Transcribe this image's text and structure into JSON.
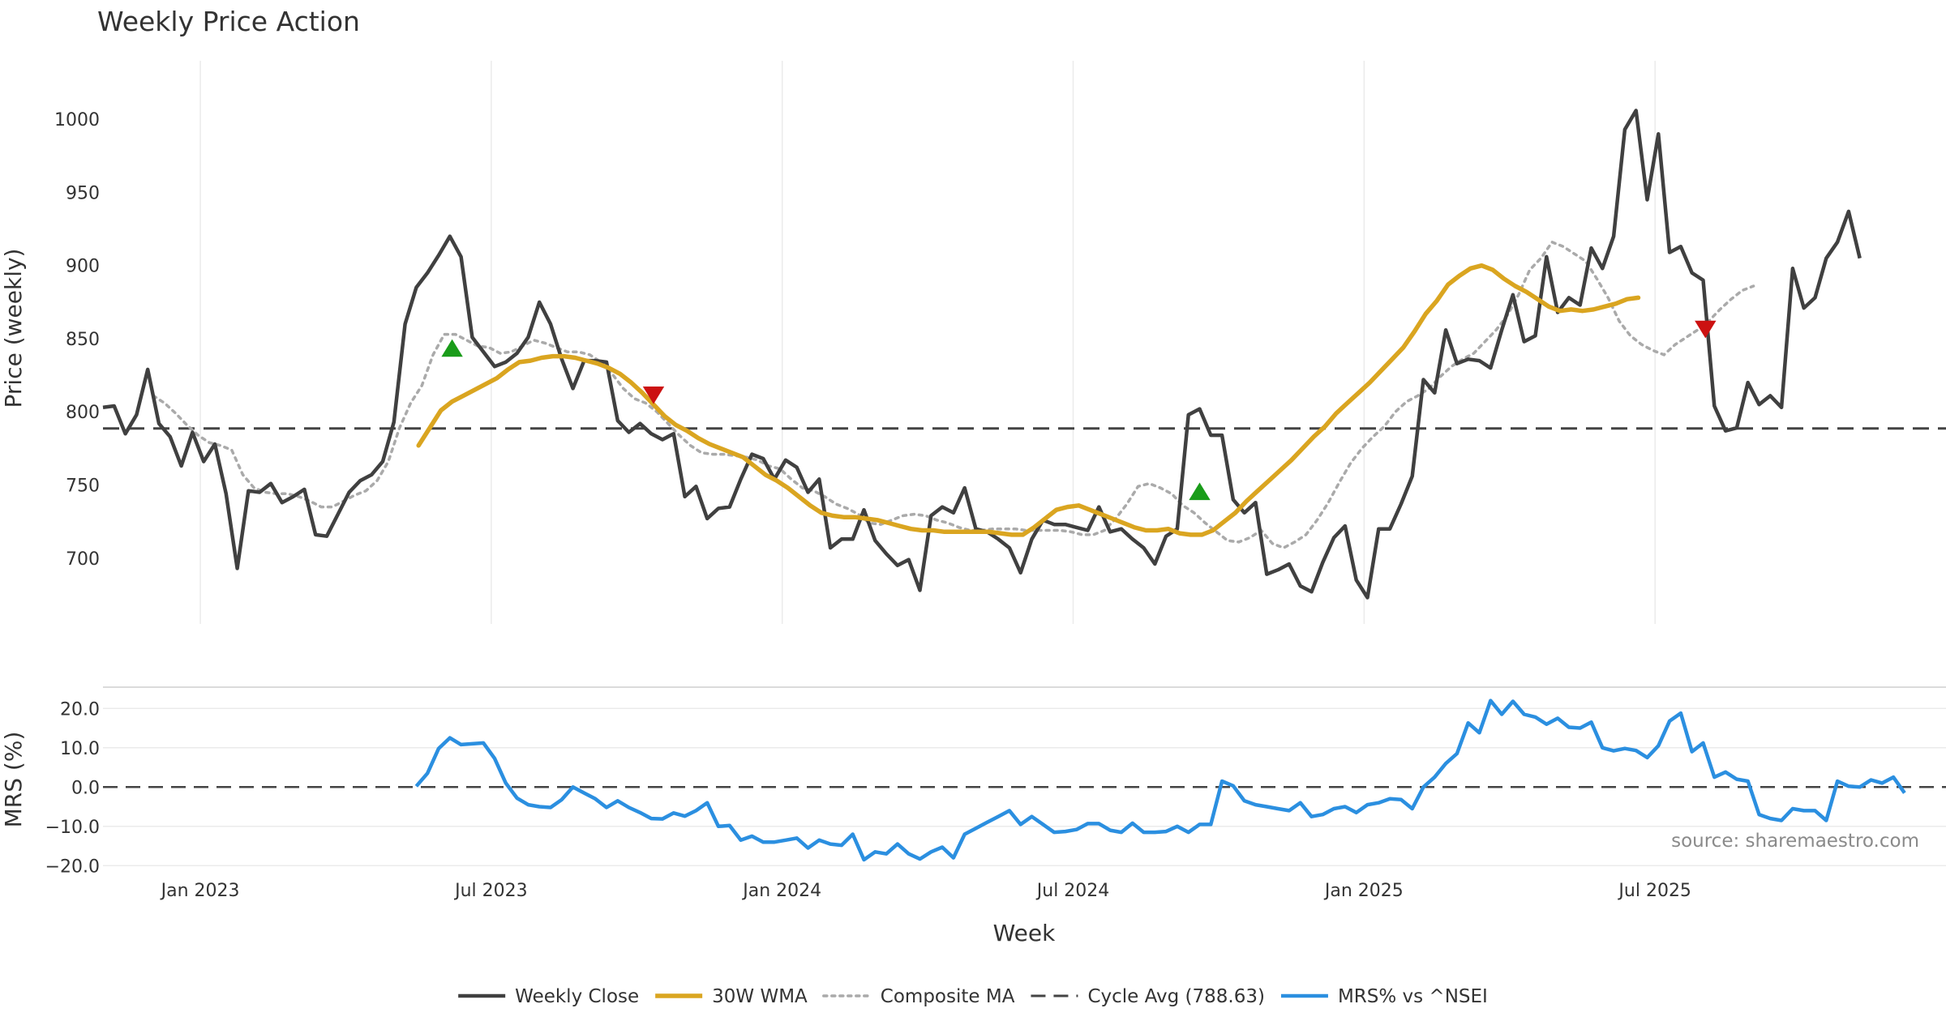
{
  "chart_data": {
    "type": "line",
    "title": "Weekly Price Action",
    "xlabel": "Week",
    "source": "source: sharemaestro.com",
    "x_ticks": [
      "Jan 2023",
      "Jul 2023",
      "Jan 2024",
      "Jul 2024",
      "Jan 2025",
      "Jul 2025"
    ],
    "x_tick_weeks": [
      6,
      32,
      58,
      84,
      110,
      136
    ],
    "x_range_weeks": [
      -2.7,
      162
    ],
    "price_panel": {
      "ylabel": "Price (weekly)",
      "ylim": [
        655,
        1040
      ],
      "y_ticks": [
        700,
        750,
        800,
        850,
        900,
        950,
        1000
      ],
      "cycle_avg": 788.63
    },
    "mrs_panel": {
      "ylabel": "MRS (%)",
      "ylim": [
        -22,
        25
      ],
      "y_ticks": [
        -20.0,
        -10.0,
        0.0,
        10.0,
        20.0
      ],
      "y_tick_labels": [
        "−20.0",
        "−10.0",
        "0.0",
        "10.0",
        "20.0"
      ]
    },
    "series": [
      {
        "name": "Weekly Close",
        "color": "#404040",
        "start_week": -2.7,
        "values": [
          803,
          804,
          785,
          798,
          829,
          792,
          783,
          763,
          786,
          766,
          778,
          744,
          693,
          746,
          745,
          751,
          738,
          742,
          747,
          716,
          715,
          730,
          745,
          753,
          757,
          766,
          793,
          860,
          885,
          895,
          907,
          920,
          906,
          851,
          841,
          831,
          834,
          840,
          851,
          875,
          860,
          836,
          816,
          835,
          835,
          834,
          794,
          786,
          792,
          785,
          781,
          785,
          742,
          749,
          727,
          734,
          735,
          754,
          771,
          768,
          754,
          767,
          762,
          745,
          754,
          707,
          713,
          713,
          733,
          712,
          703,
          695,
          699,
          678,
          729,
          735,
          731,
          748,
          720,
          718,
          713,
          707,
          690,
          713,
          726,
          723,
          723,
          721,
          719,
          735,
          718,
          720,
          713,
          707,
          696,
          715,
          720,
          798,
          802,
          784,
          784,
          740,
          731,
          738,
          689,
          692,
          696,
          681,
          677,
          697,
          714,
          722,
          685,
          673,
          720,
          720,
          737,
          756,
          822,
          813,
          856,
          833,
          836,
          835,
          830,
          856,
          880,
          848,
          852,
          906,
          868,
          878,
          873,
          912,
          898,
          920,
          993,
          1006,
          945,
          990,
          909,
          913,
          895,
          890,
          804,
          787,
          789,
          820,
          805,
          811,
          803,
          898,
          871,
          878,
          905,
          916,
          937,
          905
        ]
      },
      {
        "name": "30W WMA",
        "color": "#daa520",
        "start_week": 25.5,
        "values": [
          777,
          789,
          801,
          807,
          811,
          815,
          819,
          823,
          829,
          834,
          835,
          837,
          838,
          838,
          837,
          835,
          833,
          830,
          826,
          820,
          813,
          805,
          797,
          791,
          787,
          782,
          778,
          775,
          772,
          769,
          763,
          757,
          753,
          748,
          742,
          736,
          731,
          729,
          728,
          728,
          727,
          726,
          724,
          722,
          720,
          719,
          719,
          718,
          718,
          718,
          718,
          718,
          717,
          716,
          716,
          721,
          727,
          733,
          735,
          736,
          733,
          730,
          727,
          724,
          721,
          719,
          719,
          720,
          717,
          716,
          716,
          719,
          725,
          731,
          739,
          746,
          753,
          760,
          767,
          775,
          783,
          790,
          799,
          806,
          813,
          820,
          828,
          836,
          844,
          855,
          867,
          876,
          887,
          893,
          898,
          900,
          897,
          891,
          886,
          882,
          877,
          872,
          869,
          870,
          869,
          870,
          872,
          874,
          877,
          878
        ]
      },
      {
        "name": "Composite MA",
        "color": "#aaaaaa",
        "start_week": 1.8,
        "values": [
          811,
          806,
          799,
          791,
          784,
          779,
          777,
          774,
          757,
          748,
          745,
          744,
          744,
          742,
          739,
          735,
          735,
          739,
          743,
          746,
          753,
          766,
          789,
          806,
          818,
          839,
          853,
          853,
          849,
          845,
          844,
          840,
          841,
          845,
          849,
          847,
          844,
          841,
          841,
          839,
          834,
          826,
          816,
          809,
          806,
          800,
          792,
          784,
          777,
          772,
          771,
          771,
          770,
          769,
          767,
          763,
          761,
          754,
          748,
          746,
          742,
          737,
          734,
          730,
          724,
          723,
          726,
          729,
          730,
          729,
          726,
          724,
          721,
          719,
          719,
          720,
          720,
          720,
          719,
          719,
          719,
          719,
          718,
          716,
          716,
          719,
          727,
          737,
          749,
          751,
          748,
          744,
          736,
          731,
          724,
          718,
          712,
          711,
          714,
          719,
          710,
          707,
          711,
          716,
          726,
          738,
          752,
          765,
          775,
          783,
          790,
          800,
          807,
          811,
          816,
          824,
          831,
          836,
          840,
          848,
          856,
          866,
          880,
          897,
          905,
          916,
          913,
          908,
          903,
          891,
          878,
          862,
          852,
          846,
          842,
          839,
          846,
          851,
          856,
          862,
          870,
          877,
          883,
          886
        ]
      },
      {
        "name": "Cycle Avg (788.63)",
        "color": "#444444",
        "value": 788.63
      },
      {
        "name": "MRS% vs ^NSEI",
        "color": "#2b8fe0",
        "start_week": 25.3,
        "values": [
          0.2,
          3.5,
          9.8,
          12.5,
          10.8,
          11.0,
          11.2,
          7.3,
          1.0,
          -2.8,
          -4.5,
          -5.0,
          -5.2,
          -3.2,
          0.0,
          -1.5,
          -3.0,
          -5.2,
          -3.5,
          -5.2,
          -6.5,
          -8.0,
          -8.1,
          -6.6,
          -7.4,
          -6.0,
          -4.0,
          -10.0,
          -9.8,
          -13.5,
          -12.5,
          -14.0,
          -14.0,
          -13.5,
          -13.0,
          -15.5,
          -13.5,
          -14.5,
          -14.8,
          -12.0,
          -18.5,
          -16.5,
          -17.0,
          -14.5,
          -17.0,
          -18.3,
          -16.5,
          -15.3,
          -18.0,
          -12.0,
          -10.5,
          -9.0,
          -7.5,
          -6.0,
          -9.5,
          -7.5,
          -9.5,
          -11.5,
          -11.3,
          -10.8,
          -9.3,
          -9.3,
          -11.0,
          -11.5,
          -9.2,
          -11.5,
          -11.5,
          -11.3,
          -10.0,
          -11.5,
          -9.5,
          -9.5,
          1.5,
          0.3,
          -3.5,
          -4.5,
          -5.0,
          -5.5,
          -6.0,
          -4.0,
          -7.5,
          -7.0,
          -5.5,
          -5.0,
          -6.5,
          -4.5,
          -4.0,
          -3.0,
          -3.2,
          -5.5,
          0.0,
          2.5,
          6.0,
          8.5,
          16.3,
          13.8,
          22.0,
          18.5,
          21.8,
          18.5,
          17.8,
          16.0,
          17.5,
          15.2,
          15.0,
          16.5,
          10.0,
          9.2,
          9.8,
          9.3,
          7.5,
          10.5,
          16.8,
          18.8,
          9.0,
          11.2,
          2.5,
          3.8,
          2.0,
          1.5,
          -7.0,
          -8.0,
          -8.5,
          -5.5,
          -6.0,
          -6.0,
          -8.5,
          1.5,
          0.2,
          0.0,
          1.8,
          1.0,
          2.5,
          -1.5
        ]
      }
    ],
    "markers": [
      {
        "type": "buy",
        "symbol": "triangle-up",
        "color": "#1a9c1a",
        "week": 28.5,
        "price": 843
      },
      {
        "type": "sell",
        "symbol": "triangle-down",
        "color": "#cc1111",
        "week": 46.5,
        "price": 812
      },
      {
        "type": "buy",
        "symbol": "triangle-up",
        "color": "#1a9c1a",
        "week": 95.3,
        "price": 745
      },
      {
        "type": "sell",
        "symbol": "triangle-down",
        "color": "#cc1111",
        "week": 140.5,
        "price": 857
      }
    ],
    "legend": {
      "position": "bottom-center",
      "entries": [
        {
          "label": "Weekly Close",
          "style": "solid",
          "color": "#404040"
        },
        {
          "label": "30W WMA",
          "style": "solid",
          "color": "#daa520"
        },
        {
          "label": "Composite MA",
          "style": "dotted",
          "color": "#aaaaaa"
        },
        {
          "label": "Cycle Avg (788.63)",
          "style": "dashed",
          "color": "#444444"
        },
        {
          "label": "MRS% vs ^NSEI",
          "style": "solid",
          "color": "#2b8fe0"
        }
      ]
    }
  }
}
